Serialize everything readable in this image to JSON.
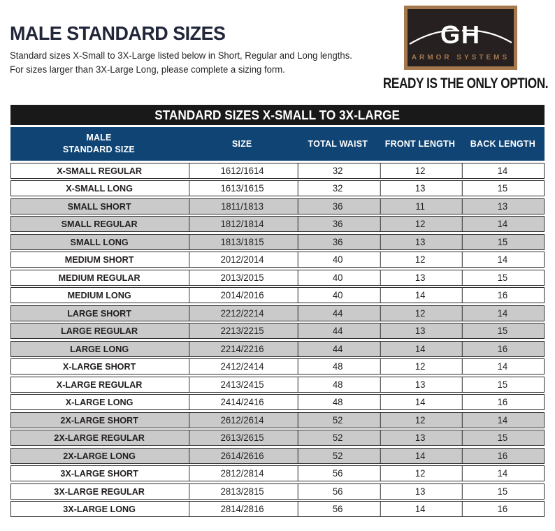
{
  "page": {
    "title": "MALE STANDARD SIZES",
    "subtitle_line1": "Standard sizes X-Small to 3X-Large listed below in Short, Regular and Long lengths.",
    "subtitle_line2": "For sizes larger than 3X-Large Long, please complete a sizing form.",
    "tagline": "READY IS THE ONLY OPTION."
  },
  "logo": {
    "monogram": "GH",
    "company": "ARMOR SYSTEMS"
  },
  "theme": {
    "navy": "#0f4474",
    "band": "#191919",
    "row_gray": "#cacaca",
    "bronze": "#a5784e",
    "logo_bg": "#262120"
  },
  "table": {
    "band_title": "STANDARD SIZES X-SMALL TO 3X-LARGE",
    "header": {
      "col1_line1": "MALE",
      "col1_line2": "STANDARD SIZE",
      "col2": "SIZE",
      "col3": "TOTAL WAIST",
      "col4": "FRONT LENGTH",
      "col5": "BACK LENGTH"
    },
    "rows": [
      {
        "name": "X-SMALL REGULAR",
        "size": "1612/1614",
        "total_waist": "32",
        "front_length": "12",
        "back_length": "14",
        "shaded": false
      },
      {
        "name": "X-SMALL LONG",
        "size": "1613/1615",
        "total_waist": "32",
        "front_length": "13",
        "back_length": "15",
        "shaded": false
      },
      {
        "name": "SMALL SHORT",
        "size": "1811/1813",
        "total_waist": "36",
        "front_length": "11",
        "back_length": "13",
        "shaded": true
      },
      {
        "name": "SMALL REGULAR",
        "size": "1812/1814",
        "total_waist": "36",
        "front_length": "12",
        "back_length": "14",
        "shaded": true
      },
      {
        "name": "SMALL LONG",
        "size": "1813/1815",
        "total_waist": "36",
        "front_length": "13",
        "back_length": "15",
        "shaded": true
      },
      {
        "name": "MEDIUM SHORT",
        "size": "2012/2014",
        "total_waist": "40",
        "front_length": "12",
        "back_length": "14",
        "shaded": false
      },
      {
        "name": "MEDIUM REGULAR",
        "size": "2013/2015",
        "total_waist": "40",
        "front_length": "13",
        "back_length": "15",
        "shaded": false
      },
      {
        "name": "MEDIUM LONG",
        "size": "2014/2016",
        "total_waist": "40",
        "front_length": "14",
        "back_length": "16",
        "shaded": false
      },
      {
        "name": "LARGE SHORT",
        "size": "2212/2214",
        "total_waist": "44",
        "front_length": "12",
        "back_length": "14",
        "shaded": true
      },
      {
        "name": "LARGE REGULAR",
        "size": "2213/2215",
        "total_waist": "44",
        "front_length": "13",
        "back_length": "15",
        "shaded": true
      },
      {
        "name": "LARGE LONG",
        "size": "2214/2216",
        "total_waist": "44",
        "front_length": "14",
        "back_length": "16",
        "shaded": true
      },
      {
        "name": "X-LARGE SHORT",
        "size": "2412/2414",
        "total_waist": "48",
        "front_length": "12",
        "back_length": "14",
        "shaded": false
      },
      {
        "name": "X-LARGE REGULAR",
        "size": "2413/2415",
        "total_waist": "48",
        "front_length": "13",
        "back_length": "15",
        "shaded": false
      },
      {
        "name": "X-LARGE LONG",
        "size": "2414/2416",
        "total_waist": "48",
        "front_length": "14",
        "back_length": "16",
        "shaded": false
      },
      {
        "name": "2X-LARGE SHORT",
        "size": "2612/2614",
        "total_waist": "52",
        "front_length": "12",
        "back_length": "14",
        "shaded": true
      },
      {
        "name": "2X-LARGE REGULAR",
        "size": "2613/2615",
        "total_waist": "52",
        "front_length": "13",
        "back_length": "15",
        "shaded": true
      },
      {
        "name": "2X-LARGE LONG",
        "size": "2614/2616",
        "total_waist": "52",
        "front_length": "14",
        "back_length": "16",
        "shaded": true
      },
      {
        "name": "3X-LARGE SHORT",
        "size": "2812/2814",
        "total_waist": "56",
        "front_length": "12",
        "back_length": "14",
        "shaded": false
      },
      {
        "name": "3X-LARGE REGULAR",
        "size": "2813/2815",
        "total_waist": "56",
        "front_length": "13",
        "back_length": "15",
        "shaded": false
      },
      {
        "name": "3X-LARGE LONG",
        "size": "2814/2816",
        "total_waist": "56",
        "front_length": "14",
        "back_length": "16",
        "shaded": false
      }
    ]
  }
}
